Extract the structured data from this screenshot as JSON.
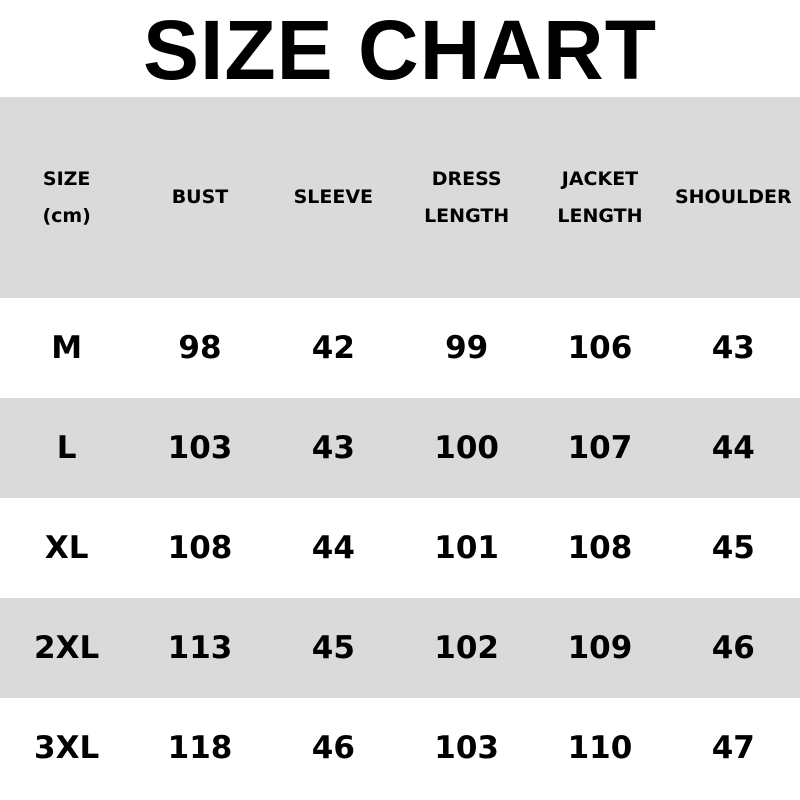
{
  "title": "SIZE CHART",
  "headers": [
    "SIZE\n(cm)",
    "BUST",
    "SLEEVE",
    "DRESS\nLENGTH",
    "JACKET\nLENGTH",
    "SHOULDER"
  ],
  "rows": [
    [
      "M",
      "98",
      "42",
      "99",
      "106",
      "43"
    ],
    [
      "L",
      "103",
      "43",
      "100",
      "107",
      "44"
    ],
    [
      "XL",
      "108",
      "44",
      "101",
      "108",
      "45"
    ],
    [
      "2XL",
      "113",
      "45",
      "102",
      "109",
      "46"
    ],
    [
      "3XL",
      "118",
      "46",
      "103",
      "110",
      "47"
    ]
  ],
  "colors": {
    "band_gray": "#dadada",
    "text": "#000000",
    "background": "#ffffff"
  }
}
